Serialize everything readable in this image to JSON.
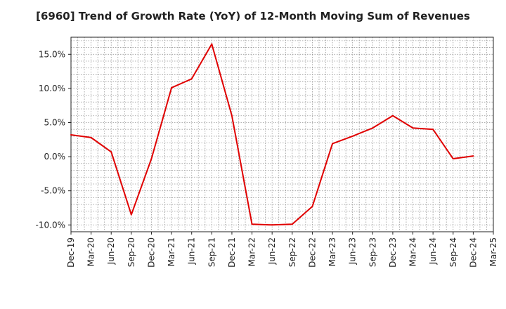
{
  "chart_data": {
    "type": "line",
    "title": "[6960]  Trend of Growth Rate (YoY) of 12-Month Moving Sum of Revenues",
    "xlabel": "",
    "ylabel": "",
    "x_tick_labels": [
      "Dec-19",
      "Mar-20",
      "Jun-20",
      "Sep-20",
      "Dec-20",
      "Mar-21",
      "Jun-21",
      "Sep-21",
      "Dec-21",
      "Mar-22",
      "Jun-22",
      "Sep-22",
      "Dec-22",
      "Mar-23",
      "Jun-23",
      "Sep-23",
      "Dec-23",
      "Mar-24",
      "Jun-24",
      "Sep-24",
      "Dec-24",
      "Mar-25"
    ],
    "y_tick_labels": [
      "15.0%",
      "10.0%",
      "5.0%",
      "0.0%",
      "-5.0%",
      "-10.0%"
    ],
    "y_tick_values": [
      15,
      10,
      5,
      0,
      -5,
      -10
    ],
    "ylim": [
      -11,
      17.5
    ],
    "grid": true,
    "line_color": "#e00000",
    "series": [
      {
        "x": [
          "Dec-19",
          "Mar-20",
          "Jun-20",
          "Sep-20",
          "Dec-20",
          "Mar-21",
          "Jun-21",
          "Sep-21",
          "Dec-21",
          "Mar-22",
          "Jun-22",
          "Sep-22",
          "Dec-22",
          "Mar-23",
          "Jun-23",
          "Sep-23",
          "Dec-23",
          "Mar-24",
          "Jun-24",
          "Sep-24",
          "Dec-24"
        ],
        "values": [
          3.2,
          2.8,
          0.7,
          -8.5,
          -0.3,
          10.1,
          11.4,
          16.5,
          6.0,
          -9.9,
          -10.0,
          -9.9,
          -7.3,
          1.9,
          3.0,
          4.2,
          6.0,
          4.2,
          4.0,
          -0.3,
          0.1
        ]
      }
    ]
  }
}
